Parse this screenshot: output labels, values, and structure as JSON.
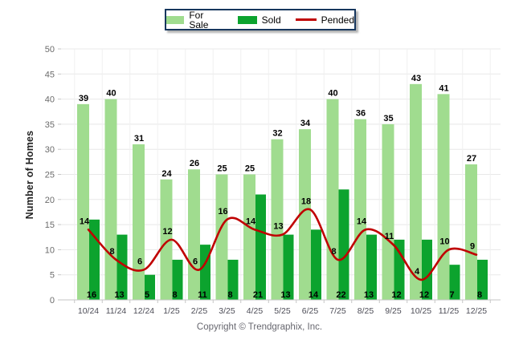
{
  "legend": {
    "items": [
      {
        "label": "For Sale",
        "color": "#A0DC8F",
        "marker": "swatch"
      },
      {
        "label": "Sold",
        "color": "#0CA32E",
        "marker": "swatch"
      },
      {
        "label": "Pended",
        "color": "#C00000",
        "marker": "line"
      }
    ]
  },
  "y_axis_title": "Number of Homes",
  "footer_text": "Copyright © Trendgraphix, Inc.",
  "colors": {
    "for_sale_bar": "#A0DC8F",
    "sold_bar": "#0CA32E",
    "pended_line": "#C00000",
    "gridline": "#E8E8E8",
    "vertical_gridline": "#F0F0F0",
    "axis_line": "#C6C6C6",
    "y_tick_text": "#6B6B6B",
    "x_tick_text": "#4D4D57",
    "value_label": "#000000",
    "legend_border": "#17375E"
  },
  "chart_data": {
    "type": "bar",
    "title": "",
    "categories": [
      "10/24",
      "11/24",
      "12/24",
      "1/25",
      "2/25",
      "3/25",
      "4/25",
      "5/25",
      "6/25",
      "7/25",
      "8/25",
      "9/25",
      "10/25",
      "11/25",
      "12/25"
    ],
    "series": [
      {
        "name": "For Sale",
        "kind": "bar",
        "color": "#A0DC8F",
        "values": [
          39,
          40,
          31,
          24,
          26,
          25,
          25,
          32,
          34,
          40,
          36,
          35,
          43,
          41,
          27
        ]
      },
      {
        "name": "Sold",
        "kind": "bar",
        "color": "#0CA32E",
        "values": [
          16,
          13,
          5,
          8,
          11,
          8,
          21,
          13,
          14,
          22,
          13,
          12,
          12,
          7,
          8
        ]
      },
      {
        "name": "Pended",
        "kind": "line",
        "color": "#C00000",
        "values": [
          14,
          8,
          6,
          12,
          6,
          16,
          14,
          13,
          18,
          8,
          14,
          11,
          4,
          10,
          9
        ]
      }
    ],
    "xlabel": "",
    "ylabel": "Number of Homes",
    "ylim": [
      0,
      50
    ],
    "ystep": 5,
    "yticks": [
      0,
      5,
      10,
      15,
      20,
      25,
      30,
      35,
      40,
      45,
      50
    ],
    "grid": true,
    "legend_position": "top-center",
    "data_labels": true,
    "line_style": "smooth"
  }
}
